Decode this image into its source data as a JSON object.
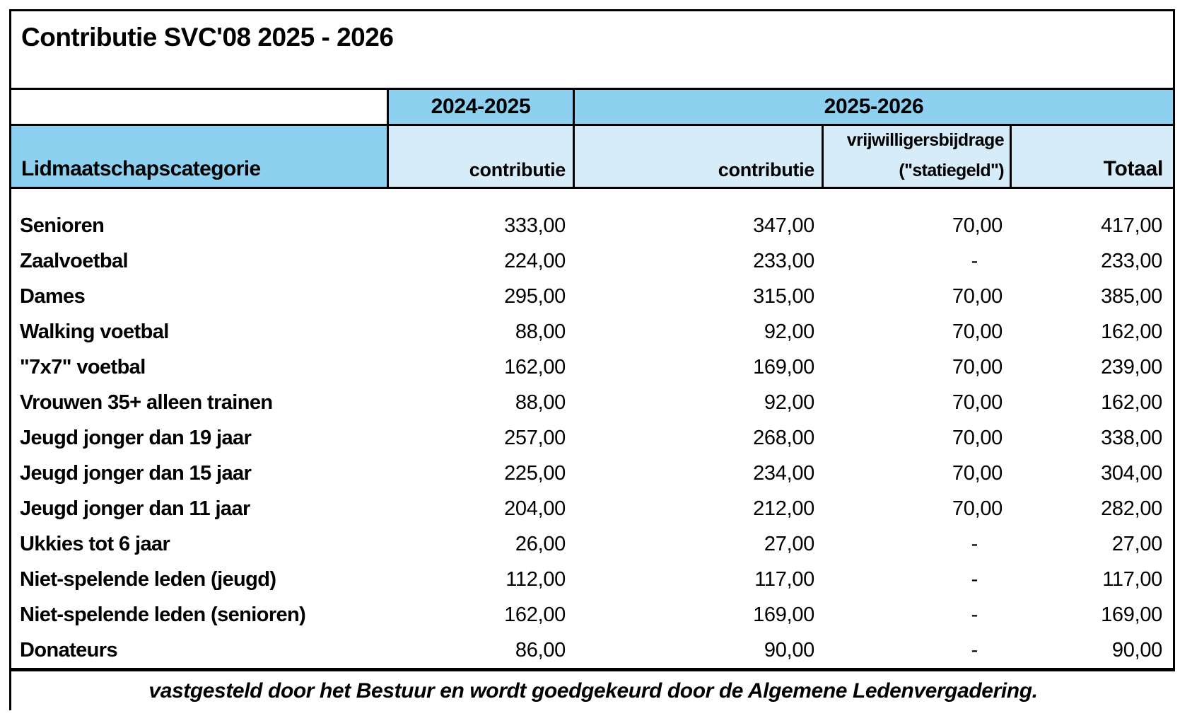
{
  "title": "Contributie SVC'08 2025 - 2026",
  "header": {
    "category_label": "Lidmaatschapscategorie",
    "season_prev": "2024-2025",
    "season_next": "2025-2026",
    "col_contributie_prev": "contributie",
    "col_contributie_next": "contributie",
    "col_vrijwilligersbijdrage_line1": "vrijwilligersbijdrage",
    "col_vrijwilligersbijdrage_line2": "(\"statiegeld\")",
    "col_totaal": "Totaal"
  },
  "rows": [
    {
      "category": "Senioren",
      "contributie_2024_2025": "333,00",
      "contributie_2025_2026": "347,00",
      "vrijwilligersbijdrage": "70,00",
      "totaal": "417,00"
    },
    {
      "category": "Zaalvoetbal",
      "contributie_2024_2025": "224,00",
      "contributie_2025_2026": "233,00",
      "vrijwilligersbijdrage": "-",
      "totaal": "233,00"
    },
    {
      "category": "Dames",
      "contributie_2024_2025": "295,00",
      "contributie_2025_2026": "315,00",
      "vrijwilligersbijdrage": "70,00",
      "totaal": "385,00"
    },
    {
      "category": "Walking voetbal",
      "contributie_2024_2025": "88,00",
      "contributie_2025_2026": "92,00",
      "vrijwilligersbijdrage": "70,00",
      "totaal": "162,00"
    },
    {
      "category": "\"7x7\" voetbal",
      "contributie_2024_2025": "162,00",
      "contributie_2025_2026": "169,00",
      "vrijwilligersbijdrage": "70,00",
      "totaal": "239,00"
    },
    {
      "category": "Vrouwen 35+ alleen trainen",
      "contributie_2024_2025": "88,00",
      "contributie_2025_2026": "92,00",
      "vrijwilligersbijdrage": "70,00",
      "totaal": "162,00"
    },
    {
      "category": "Jeugd jonger dan 19 jaar",
      "contributie_2024_2025": "257,00",
      "contributie_2025_2026": "268,00",
      "vrijwilligersbijdrage": "70,00",
      "totaal": "338,00"
    },
    {
      "category": "Jeugd jonger dan 15 jaar",
      "contributie_2024_2025": "225,00",
      "contributie_2025_2026": "234,00",
      "vrijwilligersbijdrage": "70,00",
      "totaal": "304,00"
    },
    {
      "category": "Jeugd jonger dan 11 jaar",
      "contributie_2024_2025": "204,00",
      "contributie_2025_2026": "212,00",
      "vrijwilligersbijdrage": "70,00",
      "totaal": "282,00"
    },
    {
      "category": "Ukkies tot 6 jaar",
      "contributie_2024_2025": "26,00",
      "contributie_2025_2026": "27,00",
      "vrijwilligersbijdrage": "-",
      "totaal": "27,00"
    },
    {
      "category": "Niet-spelende leden (jeugd)",
      "contributie_2024_2025": "112,00",
      "contributie_2025_2026": "117,00",
      "vrijwilligersbijdrage": "-",
      "totaal": "117,00"
    },
    {
      "category": "Niet-spelende leden (senioren)",
      "contributie_2024_2025": "162,00",
      "contributie_2025_2026": "169,00",
      "vrijwilligersbijdrage": "-",
      "totaal": "169,00"
    },
    {
      "category": "Donateurs",
      "contributie_2024_2025": "86,00",
      "contributie_2025_2026": "90,00",
      "vrijwilligersbijdrage": "-",
      "totaal": "90,00"
    }
  ],
  "footer_note": "vastgesteld door het Bestuur en wordt goedgekeurd door de Algemene Ledenvergadering.",
  "colors": {
    "season_header_blue": "#8DD0F0",
    "subheader_blue": "#D7ECF9",
    "border_black": "#000000"
  }
}
